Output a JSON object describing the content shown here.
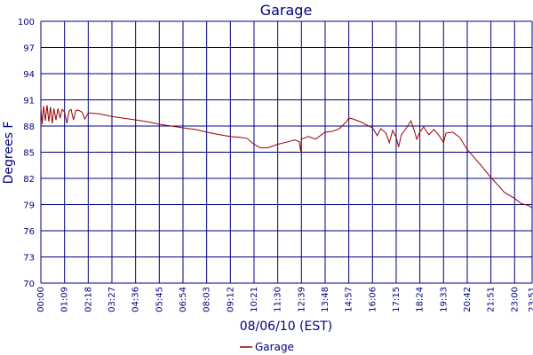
{
  "chart_data": {
    "type": "line",
    "title": "Garage",
    "xlabel": "08/06/10 (EST)",
    "ylabel": "Degrees F",
    "ylim": [
      70,
      100
    ],
    "yticks": [
      "70",
      "73",
      "76",
      "79",
      "82",
      "85",
      "88",
      "91",
      "94",
      "97",
      "100"
    ],
    "xticks": [
      "00:00",
      "01:09",
      "02:18",
      "03:27",
      "04:36",
      "05:45",
      "06:54",
      "08:03",
      "09:12",
      "10:21",
      "11:30",
      "12:39",
      "13:48",
      "14:57",
      "16:06",
      "17:15",
      "18:24",
      "19:33",
      "20:42",
      "21:51",
      "23:00",
      "23:51"
    ],
    "grid": true,
    "legend_position": "bottom",
    "series": [
      {
        "name": "Garage",
        "color": "#990000",
        "points": [
          [
            "00:00",
            90.1
          ],
          [
            "00:04",
            88.2
          ],
          [
            "00:08",
            90.3
          ],
          [
            "00:13",
            88.6
          ],
          [
            "00:18",
            90.4
          ],
          [
            "00:23",
            88.5
          ],
          [
            "00:28",
            90.2
          ],
          [
            "00:33",
            88.3
          ],
          [
            "00:38",
            90.0
          ],
          [
            "00:44",
            88.7
          ],
          [
            "00:50",
            90.0
          ],
          [
            "00:56",
            88.9
          ],
          [
            "01:02",
            89.9
          ],
          [
            "01:09",
            89.6
          ],
          [
            "01:16",
            88.3
          ],
          [
            "01:22",
            89.7
          ],
          [
            "01:28",
            89.9
          ],
          [
            "01:35",
            88.7
          ],
          [
            "01:42",
            89.8
          ],
          [
            "01:50",
            89.8
          ],
          [
            "02:00",
            89.6
          ],
          [
            "02:08",
            88.8
          ],
          [
            "02:18",
            89.5
          ],
          [
            "02:50",
            89.4
          ],
          [
            "03:27",
            89.1
          ],
          [
            "04:00",
            88.9
          ],
          [
            "04:36",
            88.7
          ],
          [
            "05:10",
            88.5
          ],
          [
            "05:45",
            88.2
          ],
          [
            "06:20",
            88.0
          ],
          [
            "06:54",
            87.8
          ],
          [
            "07:30",
            87.6
          ],
          [
            "08:03",
            87.3
          ],
          [
            "08:40",
            87.0
          ],
          [
            "09:12",
            86.8
          ],
          [
            "09:40",
            86.7
          ],
          [
            "10:00",
            86.6
          ],
          [
            "10:21",
            85.9
          ],
          [
            "10:40",
            85.5
          ],
          [
            "11:00",
            85.5
          ],
          [
            "11:30",
            85.9
          ],
          [
            "12:00",
            86.2
          ],
          [
            "12:20",
            86.4
          ],
          [
            "12:33",
            86.2
          ],
          [
            "12:37",
            85.1
          ],
          [
            "12:39",
            86.5
          ],
          [
            "13:00",
            86.8
          ],
          [
            "13:20",
            86.5
          ],
          [
            "13:48",
            87.3
          ],
          [
            "14:10",
            87.4
          ],
          [
            "14:30",
            87.7
          ],
          [
            "14:50",
            88.5
          ],
          [
            "14:57",
            88.9
          ],
          [
            "15:10",
            88.8
          ],
          [
            "15:30",
            88.5
          ],
          [
            "16:06",
            87.8
          ],
          [
            "16:20",
            86.9
          ],
          [
            "16:30",
            87.7
          ],
          [
            "16:45",
            87.2
          ],
          [
            "16:55",
            86.1
          ],
          [
            "17:05",
            87.5
          ],
          [
            "17:15",
            86.7
          ],
          [
            "17:22",
            85.6
          ],
          [
            "17:30",
            87.0
          ],
          [
            "17:45",
            87.8
          ],
          [
            "17:58",
            88.6
          ],
          [
            "18:08",
            87.4
          ],
          [
            "18:15",
            86.5
          ],
          [
            "18:24",
            87.3
          ],
          [
            "18:35",
            87.9
          ],
          [
            "18:50",
            87.0
          ],
          [
            "19:05",
            87.6
          ],
          [
            "19:20",
            86.9
          ],
          [
            "19:33",
            86.1
          ],
          [
            "19:40",
            87.2
          ],
          [
            "20:00",
            87.3
          ],
          [
            "20:20",
            86.7
          ],
          [
            "20:42",
            85.3
          ],
          [
            "21:00",
            84.5
          ],
          [
            "21:20",
            83.6
          ],
          [
            "21:51",
            82.1
          ],
          [
            "22:10",
            81.3
          ],
          [
            "22:30",
            80.4
          ],
          [
            "23:00",
            79.7
          ],
          [
            "23:20",
            79.1
          ],
          [
            "23:40",
            78.9
          ],
          [
            "23:51",
            78.6
          ]
        ]
      }
    ]
  }
}
